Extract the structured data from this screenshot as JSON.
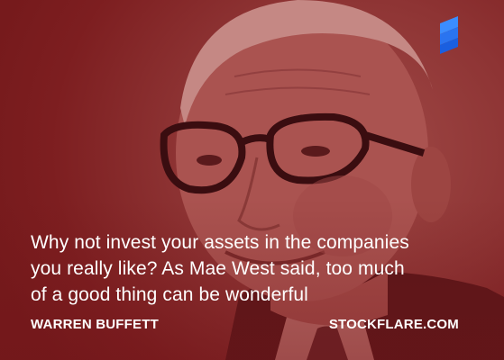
{
  "quote": {
    "line_1": "Why not invest your assets in the companies",
    "line_2": "you really like? As Mae West said, too much",
    "line_3": "of a good thing can be wonderful"
  },
  "author": "WARREN BUFFETT",
  "site": "STOCKFLARE.COM",
  "logo": {
    "icon": "stockflare-s-logo-icon",
    "color_top": "#3b8dff",
    "color_bottom": "#1a5fe0"
  },
  "colors": {
    "background": "#7e1c1e",
    "text": "#ffffff"
  }
}
